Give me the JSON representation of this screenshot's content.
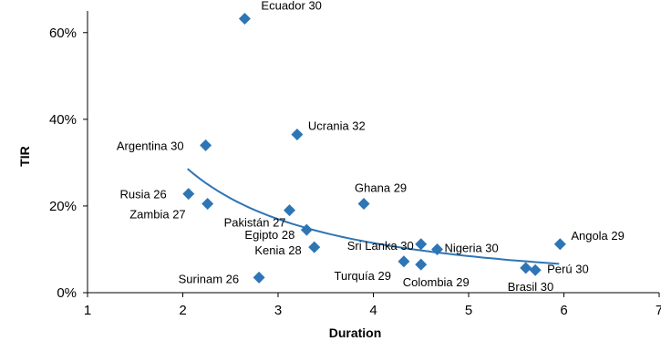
{
  "chart_data": {
    "type": "scatter",
    "xlabel": "Duration",
    "ylabel": "TIR",
    "xlim": [
      1,
      7
    ],
    "ylim": [
      0,
      0.65
    ],
    "x_ticks": [
      1,
      2,
      3,
      4,
      5,
      6,
      7
    ],
    "y_ticks": [
      {
        "value": 0,
        "label": "0%"
      },
      {
        "value": 0.2,
        "label": "20%"
      },
      {
        "value": 0.4,
        "label": "40%"
      },
      {
        "value": 0.6,
        "label": "60%"
      }
    ],
    "grid": false,
    "legend": "none",
    "marker_color": "#2e75b6",
    "trendline": {
      "type": "power",
      "color": "#2e75b6",
      "x_start": 2.05,
      "x_end": 5.95
    },
    "points": [
      {
        "label": "Ecuador 30",
        "x": 2.65,
        "y": 0.632
      },
      {
        "label": "Ucrania 32",
        "x": 3.2,
        "y": 0.365
      },
      {
        "label": "Argentina 30",
        "x": 2.24,
        "y": 0.34
      },
      {
        "label": "Ghana 29",
        "x": 3.9,
        "y": 0.205
      },
      {
        "label": "Rusia 26",
        "x": 2.06,
        "y": 0.228
      },
      {
        "label": "Zambia 27",
        "x": 2.26,
        "y": 0.205
      },
      {
        "label": "Pakistán 27",
        "x": 3.12,
        "y": 0.19
      },
      {
        "label": "Egipto 28",
        "x": 3.3,
        "y": 0.145
      },
      {
        "label": "Kenia 28",
        "x": 3.38,
        "y": 0.105
      },
      {
        "label": "Sri Lanka 30",
        "x": 4.5,
        "y": 0.112
      },
      {
        "label": "Nigeria 30",
        "x": 4.67,
        "y": 0.1
      },
      {
        "label": "Angola 29",
        "x": 5.96,
        "y": 0.112
      },
      {
        "label": "Turquía 29",
        "x": 4.32,
        "y": 0.072
      },
      {
        "label": "Colombia 29",
        "x": 4.5,
        "y": 0.065
      },
      {
        "label": "Perú 30",
        "x": 5.7,
        "y": 0.052
      },
      {
        "label": "Brasil 30",
        "x": 5.6,
        "y": 0.057
      },
      {
        "label": "Surinam 26",
        "x": 2.8,
        "y": 0.035
      }
    ]
  }
}
